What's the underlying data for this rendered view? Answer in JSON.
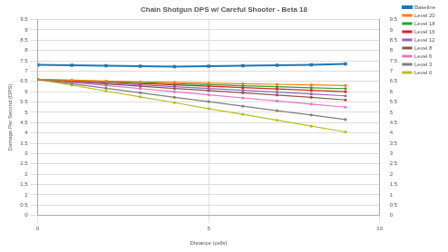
{
  "chart_data": {
    "type": "line",
    "title": "Chain Shotgun DPS w/ Careful Shooter - Beta 18",
    "x_label": "Distance (cells)",
    "y_label": "Damage Per Second (DPS)",
    "x": [
      0,
      1,
      2,
      3,
      4,
      5,
      6,
      7,
      8,
      9
    ],
    "series": [
      {
        "name": "Baseline",
        "color": "#1f77b4",
        "marker": "square",
        "values": [
          7.3,
          7.28,
          7.26,
          7.24,
          7.22,
          7.24,
          7.26,
          7.28,
          7.31,
          7.35
        ]
      },
      {
        "name": "Level 20",
        "color": "#ff7f0e",
        "marker": "circle",
        "values": [
          6.6,
          6.56,
          6.52,
          6.48,
          6.45,
          6.42,
          6.39,
          6.36,
          6.33,
          6.3
        ]
      },
      {
        "name": "Level 18",
        "color": "#2ca02c",
        "marker": "circle",
        "values": [
          6.6,
          6.55,
          6.5,
          6.44,
          6.39,
          6.34,
          6.29,
          6.24,
          6.19,
          6.15
        ]
      },
      {
        "name": "Level 16",
        "color": "#d62728",
        "marker": "circle",
        "values": [
          6.6,
          6.53,
          6.47,
          6.4,
          6.33,
          6.27,
          6.2,
          6.13,
          6.07,
          6.0
        ]
      },
      {
        "name": "Level 12",
        "color": "#9467bd",
        "marker": "circle",
        "values": [
          6.6,
          6.51,
          6.42,
          6.33,
          6.24,
          6.16,
          6.07,
          5.98,
          5.89,
          5.8
        ]
      },
      {
        "name": "Level 8",
        "color": "#8c564b",
        "marker": "circle",
        "values": [
          6.6,
          6.49,
          6.38,
          6.27,
          6.16,
          6.06,
          5.95,
          5.84,
          5.73,
          5.6
        ]
      },
      {
        "name": "Level 6",
        "color": "#e377c2",
        "marker": "circle",
        "values": [
          6.6,
          6.45,
          6.3,
          6.15,
          6.0,
          5.85,
          5.7,
          5.55,
          5.4,
          5.25
        ]
      },
      {
        "name": "Level 3",
        "color": "#7f7f7f",
        "marker": "circle",
        "values": [
          6.6,
          6.39,
          6.17,
          5.95,
          5.73,
          5.52,
          5.3,
          5.08,
          4.87,
          4.65
        ]
      },
      {
        "name": "Level 0",
        "color": "#bcbd22",
        "marker": "circle",
        "values": [
          6.6,
          6.32,
          6.03,
          5.75,
          5.47,
          5.18,
          4.9,
          4.62,
          4.33,
          4.05
        ]
      }
    ],
    "xlim": [
      0,
      10
    ],
    "xticks": [
      0,
      5,
      10
    ],
    "ylim": [
      0,
      9.5
    ],
    "yticks": [
      0,
      0.5,
      1,
      1.5,
      2,
      2.5,
      3,
      3.5,
      4,
      4.5,
      5,
      5.5,
      6,
      6.5,
      7,
      7.5,
      8,
      8.5,
      9,
      9.5
    ],
    "y2lim": [
      0,
      9.5
    ],
    "y2ticks": [
      0,
      0.5,
      1,
      1.5,
      2,
      2.5,
      3,
      3.5,
      4,
      4.5,
      5,
      5.5,
      6,
      6.5,
      7,
      7.5,
      8,
      8.5,
      9,
      9.5
    ],
    "grid": true,
    "legend": "right"
  }
}
